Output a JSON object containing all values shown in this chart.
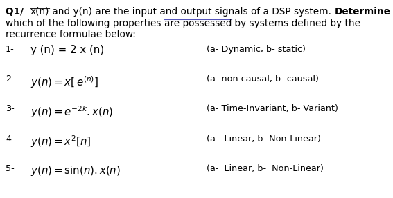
{
  "background_color": "#ffffff",
  "text_color": "#000000",
  "header_line1_parts": [
    {
      "text": "Q1/  ",
      "bold": true,
      "underline": false
    },
    {
      "text": "x(n)",
      "bold": false,
      "underline": true
    },
    {
      "text": " and y(n) are the input and output signals of a DSP system. ",
      "bold": false,
      "underline": false
    },
    {
      "text": "Determine",
      "bold": true,
      "underline": false
    }
  ],
  "header_line2_parts": [
    {
      "text": "which of the following properties ",
      "bold": false,
      "underline": false
    },
    {
      "text": "are possessed",
      "bold": false,
      "underline": true,
      "underline_color": "#5555bb"
    },
    {
      "text": " by systems defined by the",
      "bold": false,
      "underline": false
    }
  ],
  "header_line3": "recurrence formulae below:",
  "rows": [
    {
      "num": "1-",
      "formula_plain": "y (n) = 2 x (n)",
      "use_math": false,
      "answer": "(a- Dynamic, b- static)"
    },
    {
      "num": "2-",
      "formula_math": "$y(n) = x[\\,e^{(n)}]$",
      "use_math": true,
      "answer": "(a- non causal, b- causal)"
    },
    {
      "num": "3-",
      "formula_math": "$y(n) = e^{-2k} . x(n)$",
      "use_math": true,
      "answer": "(a- Time-Invariant, b- Variant)"
    },
    {
      "num": "4-",
      "formula_math": "$y(n) = x^{2}[n]$",
      "use_math": true,
      "answer": "(a-  Linear, b- Non-Linear)"
    },
    {
      "num": "5-",
      "formula_math": "$y(n) = \\sin(n) .x(n)$",
      "use_math": true,
      "answer": "(a-  Linear, b-  Non-Linear)"
    }
  ],
  "fs_header": 9.8,
  "fs_num": 9.2,
  "fs_formula": 10.8,
  "fs_answer": 9.2,
  "fig_width": 5.67,
  "fig_height": 2.87,
  "dpi": 100
}
